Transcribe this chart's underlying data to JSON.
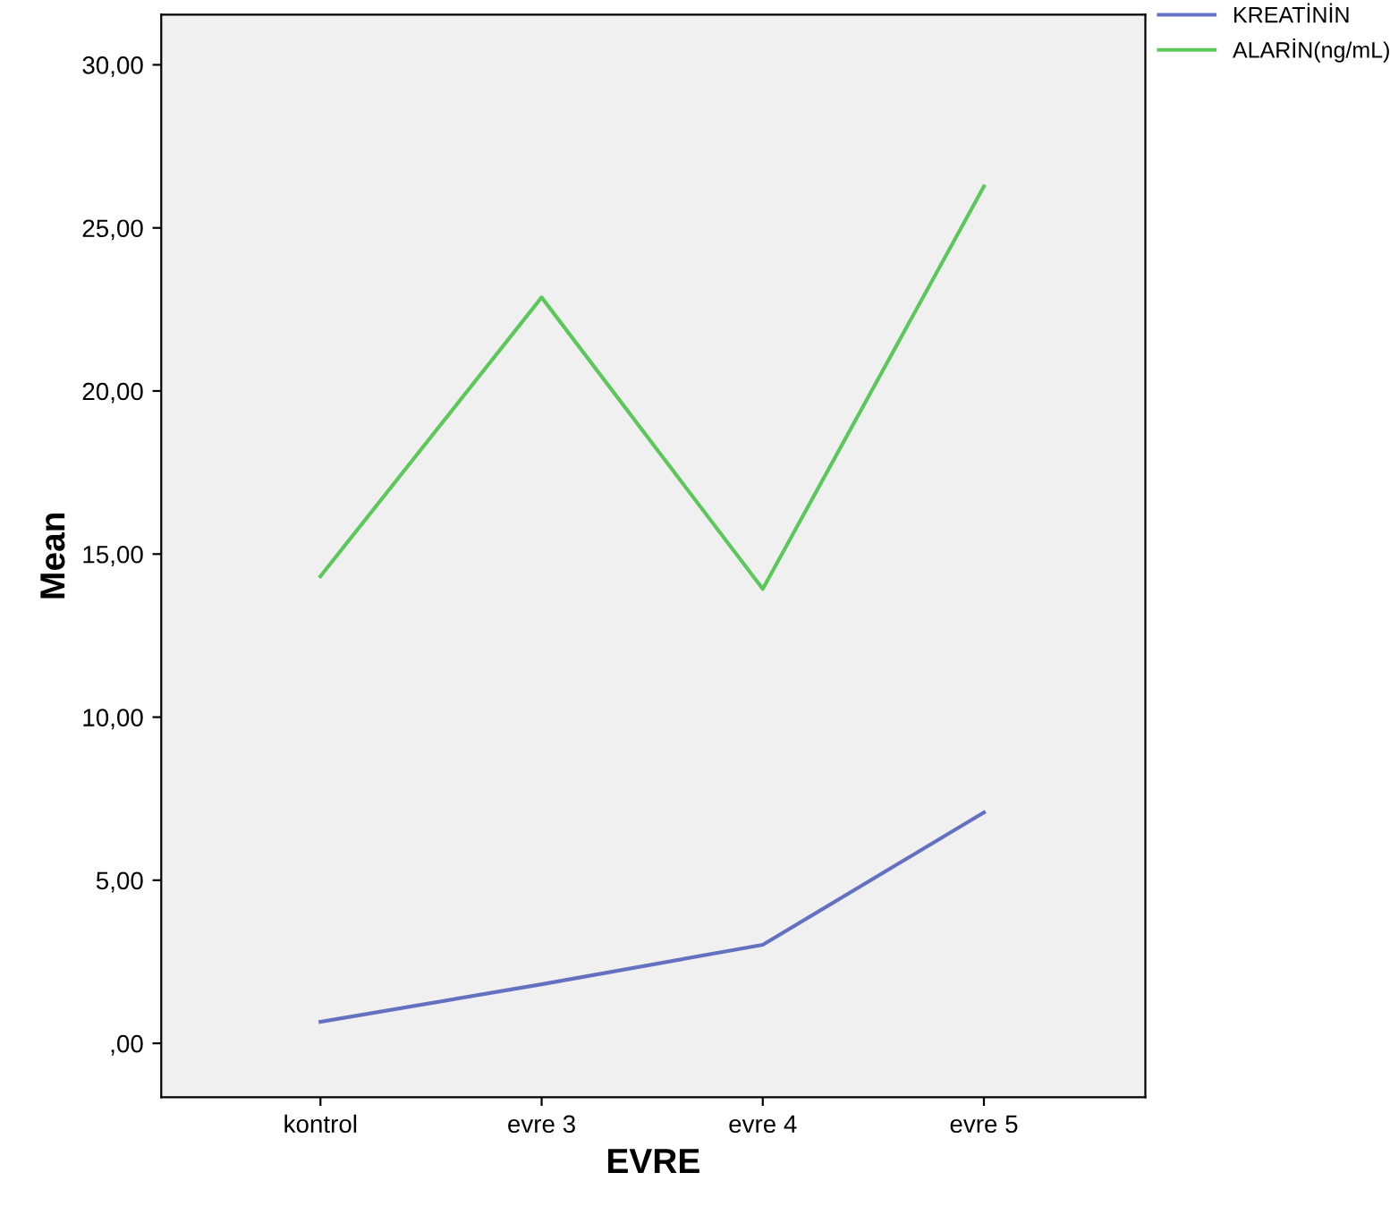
{
  "chart_data": {
    "type": "line",
    "xlabel": "EVRE",
    "ylabel": "Mean",
    "categories": [
      "kontrol",
      "evre 3",
      "evre 4",
      "evre 5"
    ],
    "series": [
      {
        "name": "KREATİNİN",
        "color": "#6470c0",
        "values": [
          0.66,
          1.81,
          3.02,
          7.08
        ]
      },
      {
        "name": "ALARİN(ng/mL)",
        "color": "#5cc85c",
        "values": [
          14.32,
          22.87,
          13.93,
          26.27
        ]
      }
    ],
    "ylim": [
      -1.65,
      31.54
    ],
    "yticks": [
      {
        "value": 0,
        "label": ",00"
      },
      {
        "value": 5,
        "label": "5,00"
      },
      {
        "value": 10,
        "label": "10,00"
      },
      {
        "value": 15,
        "label": "15,00"
      },
      {
        "value": 20,
        "label": "20,00"
      },
      {
        "value": 25,
        "label": "25,00"
      },
      {
        "value": 30,
        "label": "30,00"
      }
    ],
    "grid": false,
    "legend": "top right",
    "marker": "none",
    "line_style": "solid"
  }
}
